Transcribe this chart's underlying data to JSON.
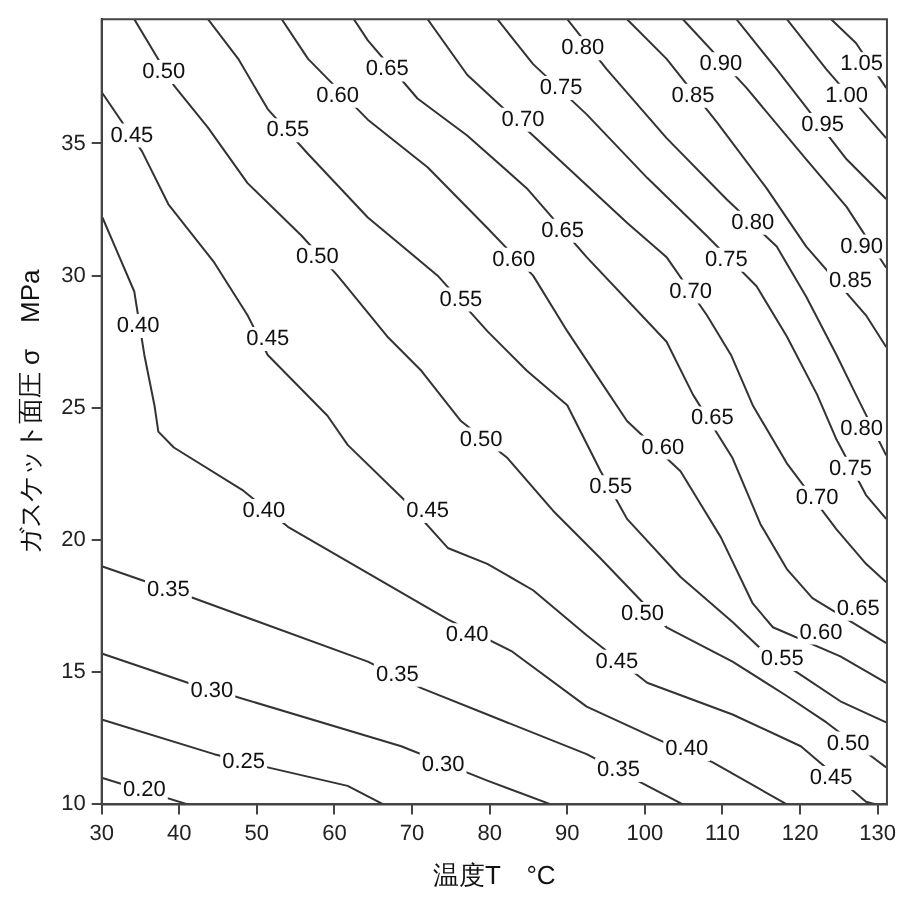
{
  "chart_data": {
    "type": "line",
    "xlabel": "温度T　°C",
    "ylabel": "ガスケット面圧 σ　MPa",
    "xlim": [
      30,
      131.2
    ],
    "ylim": [
      10,
      39.7
    ],
    "xticks": [
      30,
      40,
      50,
      60,
      70,
      80,
      90,
      100,
      110,
      120,
      130
    ],
    "yticks": [
      10,
      15,
      20,
      25,
      30,
      35
    ],
    "grid": false,
    "legend": false,
    "marker": "none",
    "line_style": "solid",
    "series": [
      {
        "color": "#333333",
        "x": [
          30.1,
          41.1
        ],
        "values": [
          11.0,
          10.0
        ]
      },
      {
        "color": "#333333",
        "x": [
          30.1,
          44.5,
          51.4,
          61.7,
          66.3
        ],
        "values": [
          13.2,
          11.9,
          11.4,
          10.7,
          10.0
        ]
      },
      {
        "color": "#333333",
        "x": [
          30.1,
          41.1,
          47.0,
          68.6,
          79.7,
          87.9
        ],
        "values": [
          15.7,
          14.6,
          14.1,
          12.2,
          10.9,
          10.0
        ]
      },
      {
        "color": "#333333",
        "x": [
          30.1,
          41.9,
          64.3,
          71.2,
          79.7,
          92.5,
          104.9
        ],
        "values": [
          19.0,
          17.8,
          15.4,
          14.4,
          13.4,
          11.9,
          10.0
        ]
      },
      {
        "color": "#333333",
        "x": [
          30.1,
          34.2,
          35.5,
          36.8,
          37.3,
          39.3,
          48.1,
          54.0,
          74.6,
          82.8,
          92.5,
          102.1,
          108.7,
          118.3
        ],
        "values": [
          32.2,
          29.4,
          27.0,
          25.1,
          24.1,
          23.5,
          21.9,
          20.5,
          17.0,
          15.8,
          13.7,
          12.4,
          11.6,
          10.0
        ]
      },
      {
        "color": "#333333",
        "x": [
          30.1,
          35.2,
          38.6,
          44.5,
          48.8,
          51.4,
          59.1,
          61.7,
          69.4,
          74.6,
          79.7,
          85.6,
          92.5,
          100.3,
          111.3,
          120.1,
          128.5,
          129.8
        ],
        "values": [
          36.9,
          34.7,
          32.7,
          30.5,
          28.5,
          27.0,
          24.7,
          23.6,
          21.4,
          19.7,
          19.1,
          18.1,
          16.4,
          14.6,
          13.4,
          12.2,
          10.1,
          10.0
        ]
      },
      {
        "color": "#333333",
        "x": [
          34.2,
          39.3,
          43.7,
          48.8,
          55.8,
          60.4,
          66.8,
          71.2,
          76.3,
          82.3,
          88.2,
          94.3,
          102.8,
          111.3,
          118.3,
          123.4,
          131.1
        ],
        "values": [
          39.7,
          37.2,
          35.6,
          33.5,
          31.5,
          30.0,
          27.7,
          26.4,
          24.5,
          23.1,
          21.1,
          19.3,
          16.7,
          15.4,
          14.1,
          13.1,
          11.4
        ]
      },
      {
        "color": "#333333",
        "x": [
          43.7,
          47.6,
          51.4,
          56.6,
          64.3,
          73.3,
          79.7,
          84.8,
          90.0,
          94.3,
          97.7,
          104.6,
          111.3,
          114.9,
          120.1,
          125.2,
          131.1
        ],
        "values": [
          39.7,
          38.2,
          36.3,
          34.6,
          32.2,
          30.0,
          27.9,
          26.4,
          25.1,
          22.6,
          20.8,
          18.6,
          16.9,
          15.9,
          14.9,
          13.9,
          13.1
        ]
      },
      {
        "color": "#333333",
        "x": [
          53.2,
          56.6,
          64.3,
          72.0,
          79.7,
          85.6,
          90.0,
          94.3,
          97.7,
          104.6,
          109.8,
          113.9,
          116.5,
          125.2,
          131.1
        ],
        "values": [
          39.7,
          38.2,
          35.9,
          34.1,
          31.8,
          30.0,
          27.9,
          26.0,
          24.5,
          22.6,
          20.1,
          17.6,
          16.7,
          15.6,
          14.6
        ]
      },
      {
        "color": "#333333",
        "x": [
          62.5,
          64.3,
          70.7,
          77.1,
          84.8,
          92.5,
          102.8,
          106.2,
          111.3,
          114.9,
          118.3,
          121.6,
          131.1
        ],
        "values": [
          39.7,
          38.9,
          36.7,
          35.3,
          33.3,
          30.7,
          27.5,
          25.5,
          23.1,
          20.6,
          18.9,
          17.8,
          16.1
        ]
      },
      {
        "color": "#333333",
        "x": [
          72.0,
          77.1,
          90.0,
          97.7,
          102.8,
          108.0,
          111.1,
          113.9,
          118.3,
          124.7,
          128.5,
          131.1
        ],
        "values": [
          39.7,
          37.6,
          34.1,
          32.0,
          30.7,
          28.5,
          27.0,
          25.1,
          22.9,
          20.4,
          19.1,
          18.4
        ]
      },
      {
        "color": "#333333",
        "x": [
          81.0,
          85.6,
          92.5,
          100.3,
          108.0,
          114.4,
          118.3,
          122.2,
          124.7,
          128.5,
          131.1
        ],
        "values": [
          39.7,
          38.0,
          36.1,
          33.7,
          31.5,
          29.6,
          27.7,
          25.5,
          23.8,
          21.7,
          20.8
        ]
      },
      {
        "color": "#333333",
        "x": [
          90.0,
          95.1,
          102.8,
          110.5,
          117.0,
          120.8,
          124.7,
          127.2,
          131.1
        ],
        "values": [
          39.7,
          37.8,
          35.2,
          32.9,
          31.1,
          29.2,
          27.0,
          25.5,
          23.2
        ]
      },
      {
        "color": "#333333",
        "x": [
          97.7,
          102.8,
          109.3,
          115.7,
          120.8,
          128.5,
          131.1
        ],
        "values": [
          39.7,
          38.2,
          35.8,
          33.3,
          31.1,
          28.5,
          27.3
        ]
      },
      {
        "color": "#333333",
        "x": [
          104.9,
          113.1,
          120.8,
          126.0,
          131.1
        ],
        "values": [
          39.7,
          37.1,
          34.4,
          32.6,
          30.3
        ]
      },
      {
        "color": "#333333",
        "x": [
          111.8,
          117.0,
          126.0,
          131.1
        ],
        "values": [
          39.7,
          37.8,
          34.4,
          32.9
        ]
      },
      {
        "color": "#333333",
        "x": [
          118.3,
          123.4,
          131.1
        ],
        "values": [
          39.7,
          37.8,
          35.2
        ]
      },
      {
        "color": "#333333",
        "x": [
          124.0,
          127.2,
          131.1
        ],
        "values": [
          39.7,
          38.8,
          37.1
        ]
      }
    ],
    "annotations": [
      {
        "text": "0.20",
        "x": 35.5,
        "y": 10.4
      },
      {
        "text": "0.25",
        "x": 48.3,
        "y": 11.6
      },
      {
        "text": "0.30",
        "x": 44.2,
        "y": 14.3
      },
      {
        "text": "0.30",
        "x": 74.0,
        "y": 11.5
      },
      {
        "text": "0.35",
        "x": 38.6,
        "y": 18.1
      },
      {
        "text": "0.35",
        "x": 68.1,
        "y": 14.9
      },
      {
        "text": "0.35",
        "x": 96.6,
        "y": 11.3
      },
      {
        "text": "0.40",
        "x": 34.7,
        "y": 28.1
      },
      {
        "text": "0.40",
        "x": 50.9,
        "y": 21.1
      },
      {
        "text": "0.40",
        "x": 77.1,
        "y": 16.4
      },
      {
        "text": "0.40",
        "x": 105.4,
        "y": 12.1
      },
      {
        "text": "0.45",
        "x": 33.9,
        "y": 35.3
      },
      {
        "text": "0.45",
        "x": 51.4,
        "y": 27.6
      },
      {
        "text": "0.45",
        "x": 72.0,
        "y": 21.1
      },
      {
        "text": "0.45",
        "x": 96.4,
        "y": 15.4
      },
      {
        "text": "0.45",
        "x": 124.0,
        "y": 11.0
      },
      {
        "text": "0.50",
        "x": 38.0,
        "y": 37.7
      },
      {
        "text": "0.50",
        "x": 57.8,
        "y": 30.7
      },
      {
        "text": "0.50",
        "x": 78.9,
        "y": 23.8
      },
      {
        "text": "0.50",
        "x": 99.7,
        "y": 17.2
      },
      {
        "text": "0.50",
        "x": 126.2,
        "y": 12.3
      },
      {
        "text": "0.55",
        "x": 54.0,
        "y": 35.5
      },
      {
        "text": "0.55",
        "x": 76.3,
        "y": 29.1
      },
      {
        "text": "0.55",
        "x": 95.6,
        "y": 22.0
      },
      {
        "text": "0.55",
        "x": 117.7,
        "y": 15.5
      },
      {
        "text": "0.60",
        "x": 60.4,
        "y": 36.8
      },
      {
        "text": "0.60",
        "x": 83.1,
        "y": 30.6
      },
      {
        "text": "0.60",
        "x": 102.3,
        "y": 23.5
      },
      {
        "text": "0.60",
        "x": 122.7,
        "y": 16.5
      },
      {
        "text": "0.65",
        "x": 66.8,
        "y": 37.8
      },
      {
        "text": "0.65",
        "x": 89.4,
        "y": 31.7
      },
      {
        "text": "0.65",
        "x": 108.7,
        "y": 24.6
      },
      {
        "text": "0.65",
        "x": 127.5,
        "y": 17.4
      },
      {
        "text": "0.70",
        "x": 84.3,
        "y": 35.9
      },
      {
        "text": "0.70",
        "x": 105.9,
        "y": 29.4
      },
      {
        "text": "0.70",
        "x": 122.2,
        "y": 21.6
      },
      {
        "text": "0.75",
        "x": 89.2,
        "y": 37.1
      },
      {
        "text": "0.75",
        "x": 110.5,
        "y": 30.6
      },
      {
        "text": "0.75",
        "x": 126.5,
        "y": 22.7
      },
      {
        "text": "0.80",
        "x": 92.0,
        "y": 38.6
      },
      {
        "text": "0.80",
        "x": 113.9,
        "y": 32.0
      },
      {
        "text": "0.80",
        "x": 129.0,
        "y": 24.2
      },
      {
        "text": "0.85",
        "x": 106.2,
        "y": 36.8
      },
      {
        "text": "0.85",
        "x": 126.5,
        "y": 29.8
      },
      {
        "text": "0.90",
        "x": 109.8,
        "y": 38.0
      },
      {
        "text": "0.90",
        "x": 129.0,
        "y": 31.1
      },
      {
        "text": "0.95",
        "x": 122.9,
        "y": 35.7
      },
      {
        "text": "1.00",
        "x": 126.0,
        "y": 36.8
      },
      {
        "text": "1.05",
        "x": 129.0,
        "y": 38.0
      }
    ]
  }
}
